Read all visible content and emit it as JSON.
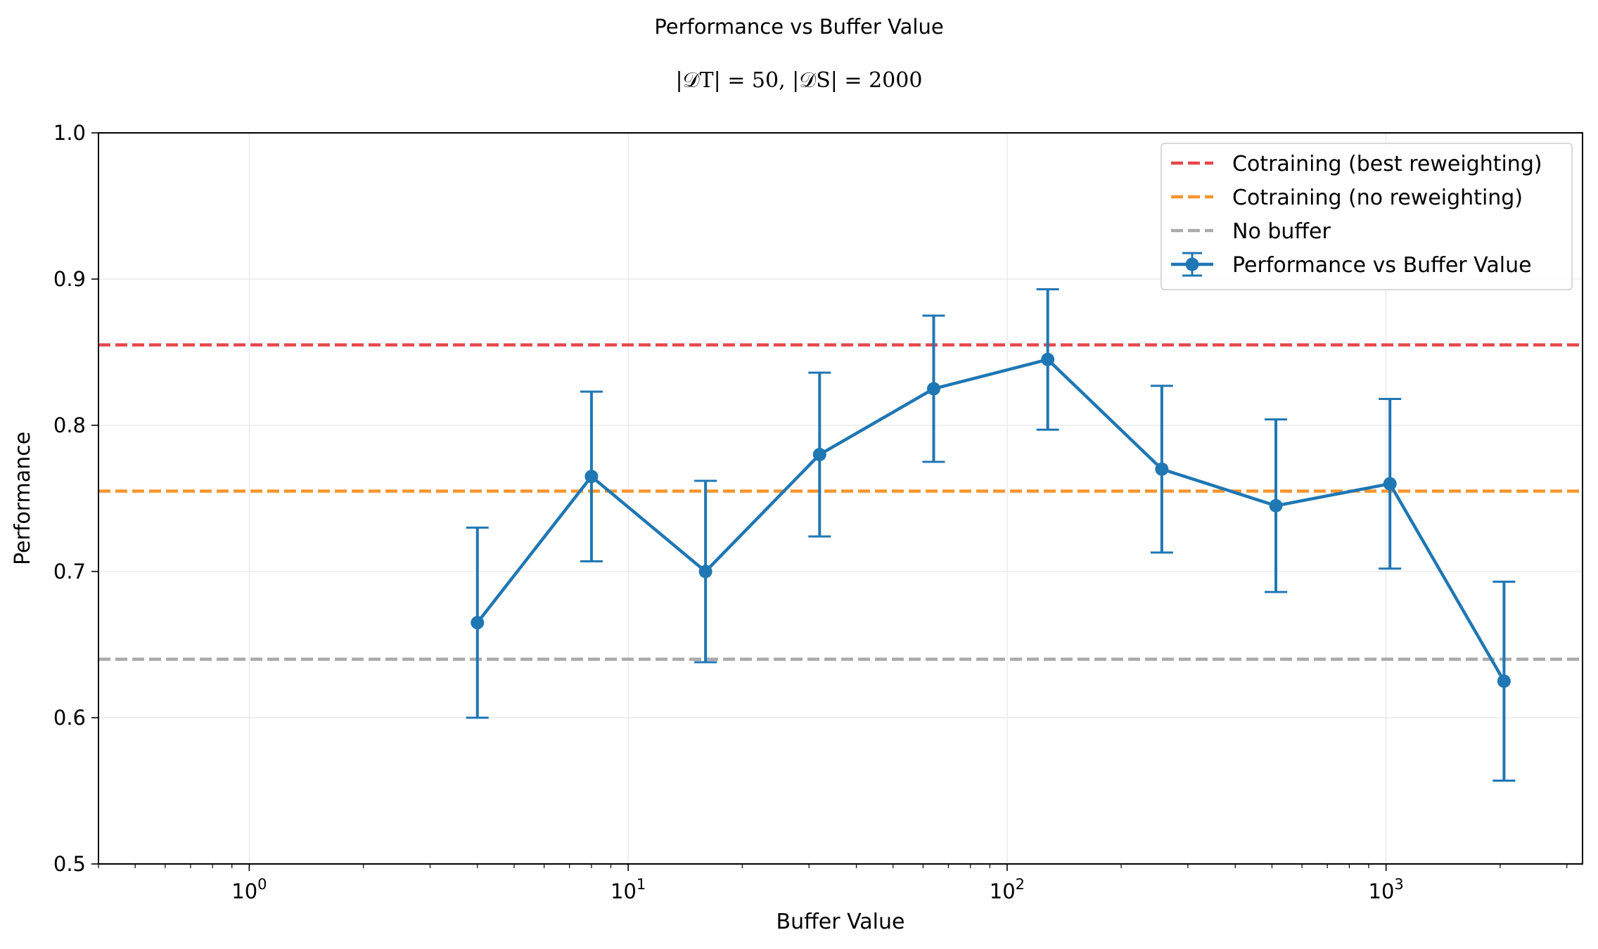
{
  "chart_data": {
    "type": "line",
    "title": "Performance vs Buffer Value",
    "subtitle": "|𝒟T| = 50, |𝒟S| = 2000",
    "xlabel": "Buffer Value",
    "ylabel": "Performance",
    "xscale": "log",
    "xlim": [
      0.4,
      3300
    ],
    "ylim": [
      0.5,
      1.0
    ],
    "xticks": [
      {
        "value": 1,
        "label": "10",
        "exp": "0"
      },
      {
        "value": 10,
        "label": "10",
        "exp": "1"
      },
      {
        "value": 100,
        "label": "10",
        "exp": "2"
      },
      {
        "value": 1000,
        "label": "10",
        "exp": "3"
      }
    ],
    "yticks": [
      {
        "value": 0.5,
        "label": "0.5"
      },
      {
        "value": 0.6,
        "label": "0.6"
      },
      {
        "value": 0.7,
        "label": "0.7"
      },
      {
        "value": 0.8,
        "label": "0.8"
      },
      {
        "value": 0.9,
        "label": "0.9"
      },
      {
        "value": 1.0,
        "label": "1.0"
      }
    ],
    "grid": true,
    "legend_position": "top-right",
    "series": [
      {
        "name": "Performance vs Buffer Value",
        "color": "#1f77b4",
        "x": [
          4,
          8,
          16,
          32,
          64,
          128,
          256,
          512,
          1024,
          2048
        ],
        "y": [
          0.665,
          0.765,
          0.7,
          0.78,
          0.825,
          0.845,
          0.77,
          0.745,
          0.76,
          0.625
        ],
        "yerr": [
          0.065,
          0.058,
          0.062,
          0.056,
          0.05,
          0.048,
          0.057,
          0.059,
          0.058,
          0.068
        ]
      }
    ],
    "reference_lines": [
      {
        "name": "Cotraining (best reweighting)",
        "y": 0.855,
        "color": "#e6484b"
      },
      {
        "name": "Cotraining (no reweighting)",
        "y": 0.755,
        "color": "#f7952f"
      },
      {
        "name": "No buffer",
        "y": 0.64,
        "color": "#aaaaaa"
      }
    ]
  }
}
